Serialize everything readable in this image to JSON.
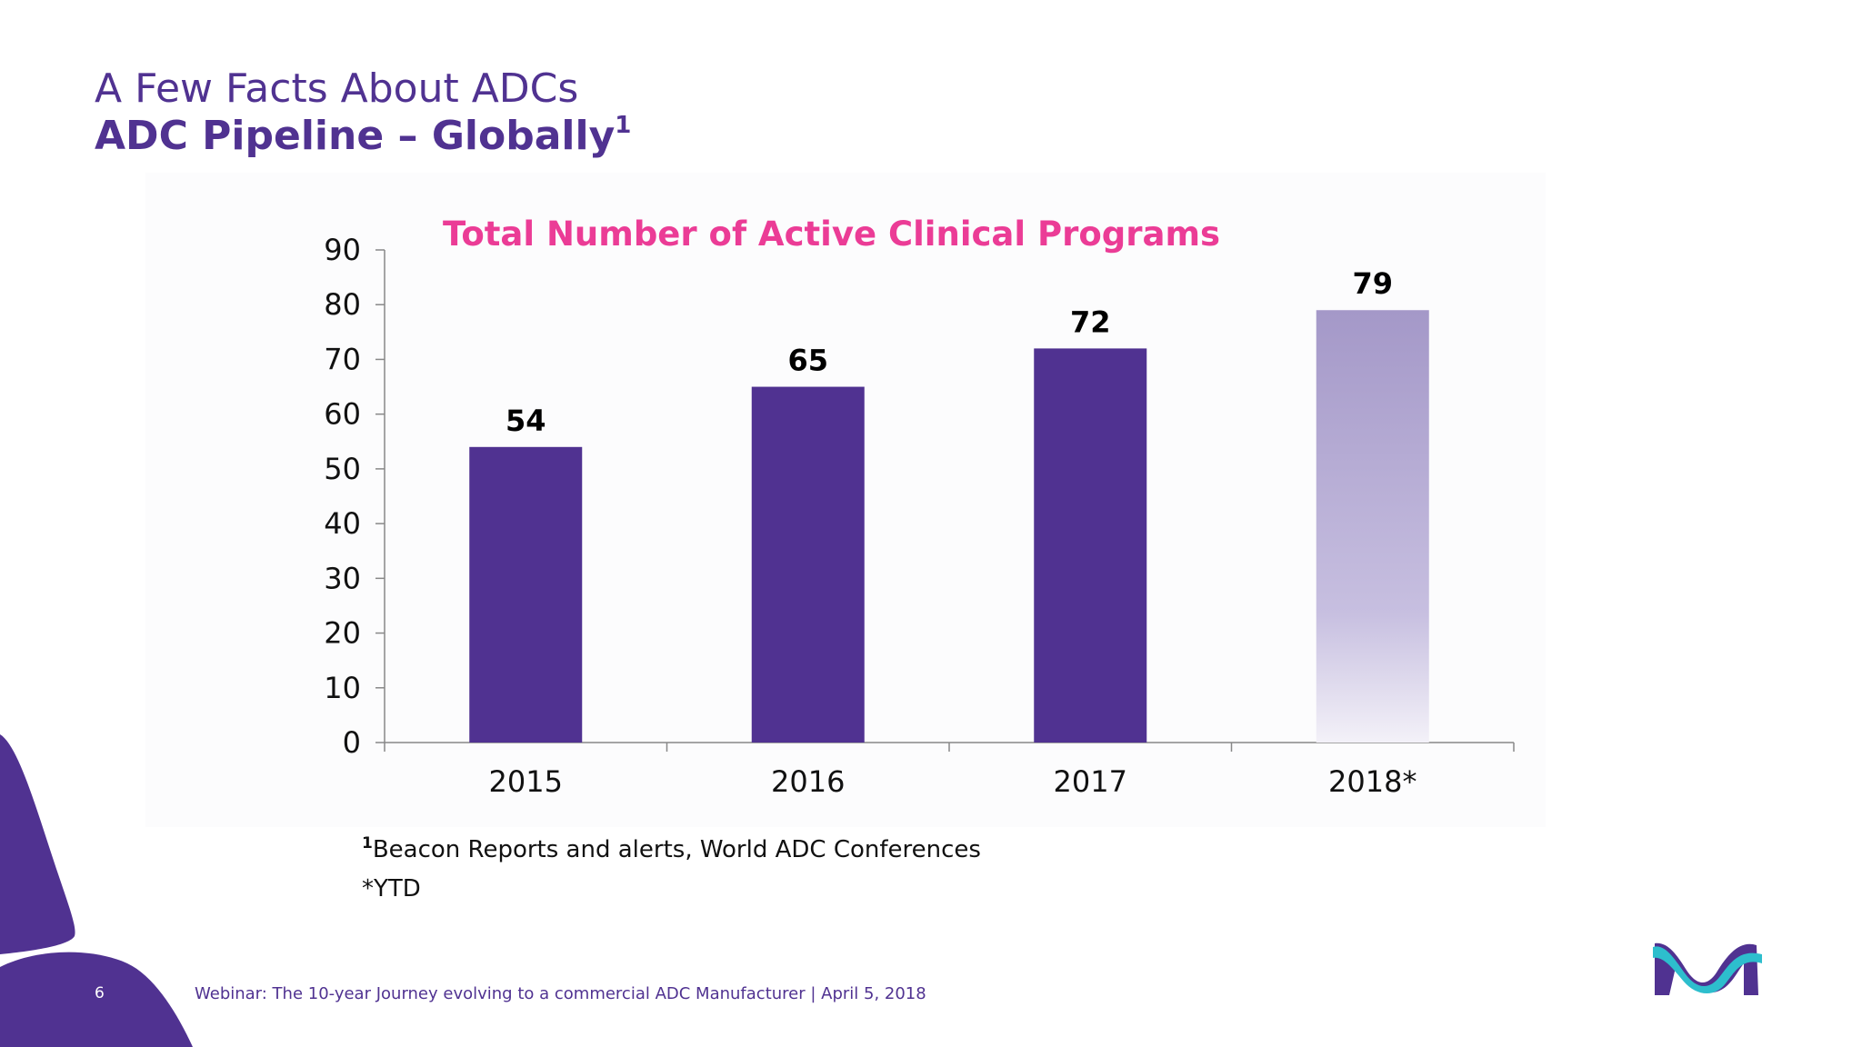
{
  "slide": {
    "title_line1": "A Few Facts About ADCs",
    "title_line2": "ADC Pipeline – Globally",
    "title_sup": "1",
    "note_sup": "1",
    "note_text": "Beacon Reports and alerts, World ADC Conferences",
    "note_ytd": "*YTD",
    "page_number": "6",
    "footer": "Webinar: The 10-year Journey evolving to a commercial ADC Manufacturer | April 5, 2018"
  },
  "colors": {
    "brand_purple": "#503291",
    "title_pink": "#EB3C96",
    "logo_teal": "#2DBECD"
  },
  "chart_data": {
    "type": "bar",
    "title": "Total Number of Active Clinical Programs",
    "categories": [
      "2015",
      "2016",
      "2017",
      "2018*"
    ],
    "values": [
      54,
      65,
      72,
      79
    ],
    "data_labels": [
      "54",
      "65",
      "72",
      "79"
    ],
    "projected_index": 3,
    "ylim": [
      0,
      90
    ],
    "yticks": [
      0,
      10,
      20,
      30,
      40,
      50,
      60,
      70,
      80,
      90
    ],
    "grid": false,
    "legend": "none",
    "xlabel": "",
    "ylabel": ""
  }
}
